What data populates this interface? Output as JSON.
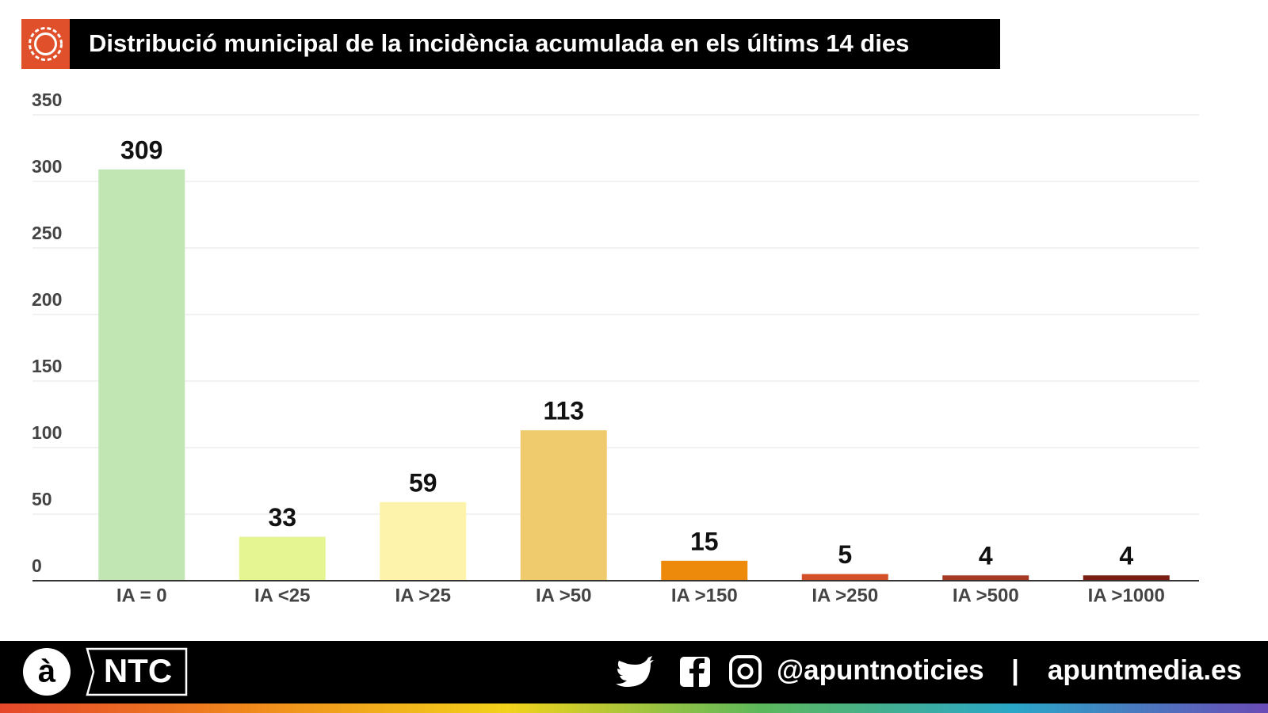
{
  "chart_data": {
    "type": "bar",
    "title": "Distribució municipal de la incidència acumulada en els últims 14 dies",
    "categories": [
      "IA = 0",
      "IA <25",
      "IA >25",
      "IA >50",
      "IA >150",
      "IA >250",
      "IA >500",
      "IA >1000"
    ],
    "values": [
      309,
      33,
      59,
      113,
      15,
      5,
      4,
      4
    ],
    "colors": [
      "#c2e5b4",
      "#e4f591",
      "#fdf3aa",
      "#efcb6e",
      "#ee8a0b",
      "#d4502a",
      "#a63a24",
      "#7a1d12"
    ],
    "ylim": [
      0,
      350
    ],
    "yticks": [
      0,
      50,
      100,
      150,
      200,
      250,
      300,
      350
    ],
    "grid": true
  },
  "footer": {
    "logo": "à",
    "brand": "NTC",
    "handle": "@apuntnoticies",
    "separator": "|",
    "website": "apuntmedia.es"
  }
}
